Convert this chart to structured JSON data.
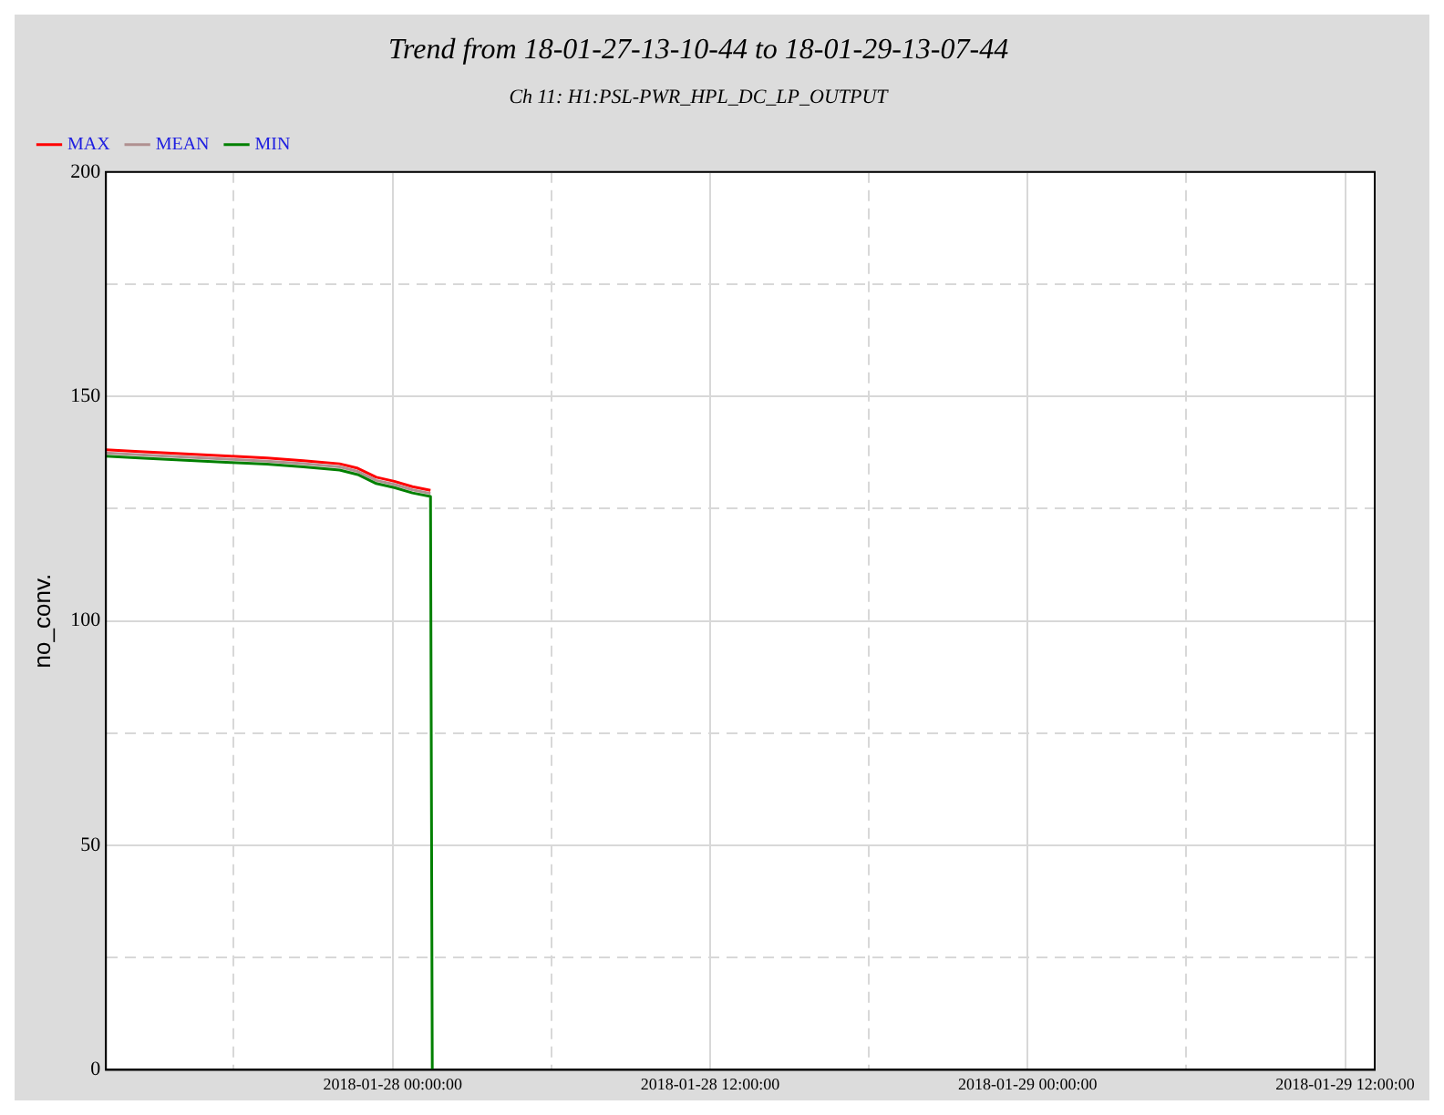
{
  "chart_data": {
    "type": "line",
    "title": "Trend from 18-01-27-13-10-44 to 18-01-29-13-07-44",
    "subtitle": "Ch 11: H1:PSL-PWR_HPL_DC_LP_OUTPUT",
    "ylabel": "no_conv.",
    "x": [
      "2018-01-27T13:10",
      "2018-01-27T14:26",
      "2018-01-27T15:49",
      "2018-01-27T17:53",
      "2018-01-27T19:15",
      "2018-01-27T20:38",
      "2018-01-27T22:00",
      "2018-01-27T22:41",
      "2018-01-27T23:23",
      "2018-01-28T00:04",
      "2018-01-28T00:45",
      "2018-01-28T01:26",
      "2018-01-28T01:30"
    ],
    "series": [
      {
        "name": "MAX",
        "color": "#ff0000",
        "values": [
          138.1,
          137.7,
          137.3,
          136.7,
          136.3,
          135.7,
          135.0,
          134.0,
          132.0,
          131.1,
          129.9,
          129.1,
          null
        ]
      },
      {
        "name": "MEAN",
        "color": "#b09090",
        "values": [
          137.4,
          137.0,
          136.6,
          136.0,
          135.6,
          135.0,
          134.3,
          133.3,
          131.3,
          130.4,
          129.2,
          128.4,
          null
        ]
      },
      {
        "name": "MIN",
        "color": "#008000",
        "values": [
          136.7,
          136.3,
          135.9,
          135.3,
          134.9,
          134.3,
          133.6,
          132.6,
          130.6,
          129.7,
          128.5,
          127.7,
          0
        ]
      }
    ],
    "xlim": [
      "2018-01-27T13:10",
      "2018-01-29T13:07"
    ],
    "xticks": [
      {
        "value": "2018-01-27T18:00",
        "label": null
      },
      {
        "value": "2018-01-28T00:00",
        "label": "2018-01-28 00:00:00"
      },
      {
        "value": "2018-01-28T06:00",
        "label": null
      },
      {
        "value": "2018-01-28T12:00",
        "label": "2018-01-28 12:00:00"
      },
      {
        "value": "2018-01-28T18:00",
        "label": null
      },
      {
        "value": "2018-01-29T00:00",
        "label": "2018-01-29 00:00:00"
      },
      {
        "value": "2018-01-29T06:00",
        "label": null
      },
      {
        "value": "2018-01-29T12:00",
        "label": "2018-01-29 12:00:00"
      }
    ],
    "ylim": [
      0,
      200
    ],
    "yticks": [
      0,
      {
        "value": 25,
        "label": null
      },
      50,
      {
        "value": 75,
        "label": null
      },
      100,
      {
        "value": 125,
        "label": null
      },
      150,
      {
        "value": 175,
        "label": null
      },
      200
    ],
    "grid": true,
    "legend": "top left",
    "marker": "none",
    "line_style": "solid"
  }
}
